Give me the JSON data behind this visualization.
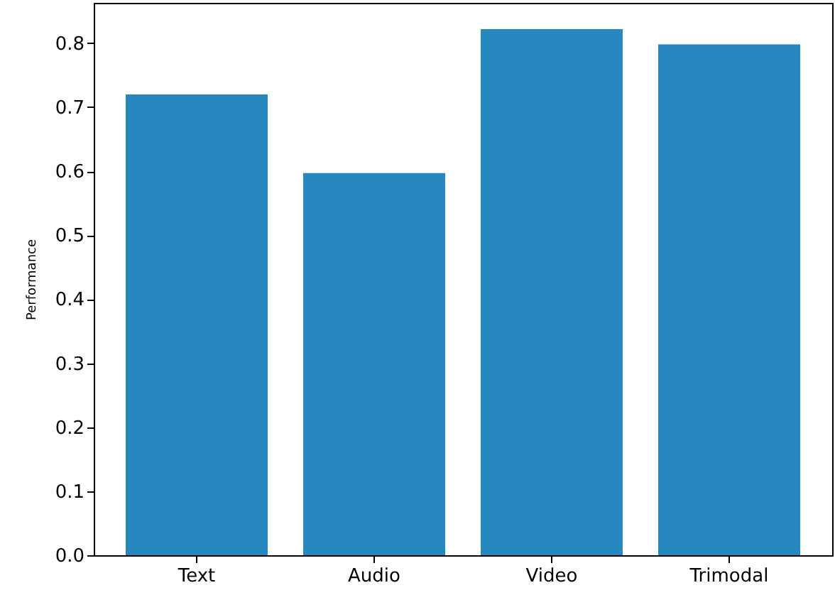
{
  "chart_data": {
    "type": "bar",
    "ylabel": "Performance",
    "categories": [
      "Text",
      "Audio",
      "Video",
      "Trimodal"
    ],
    "values": [
      0.72,
      0.597,
      0.822,
      0.798
    ],
    "color": "#2788c0",
    "ylim": [
      0,
      0.863
    ],
    "yticks": [
      {
        "value": 0,
        "label": "0.0"
      },
      0.1,
      0.2,
      0.3,
      0.4,
      0.5,
      0.6,
      0.7,
      0.8
    ],
    "grid": false,
    "legend": false
  }
}
